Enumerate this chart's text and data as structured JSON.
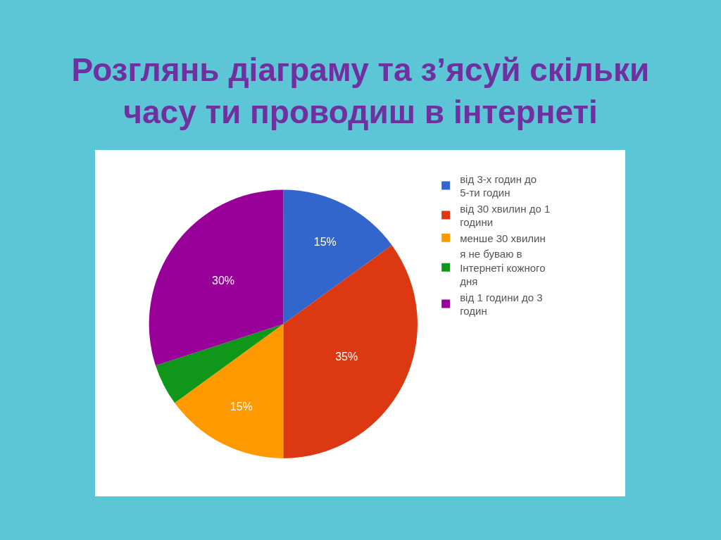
{
  "chart_data": {
    "type": "pie",
    "title": "Розглянь діаграму та з’ясуй скільки\nчасу ти проводиш в інтернеті",
    "categories": [
      "від 3-х годин до 5-ти годин",
      "від 30 хвилин до 1 години",
      "менше 30 хвилин",
      "я не буваю в Інтернеті кожного дня",
      "від 1 години до 3 годин"
    ],
    "values": [
      15,
      35,
      15,
      5,
      30
    ],
    "colors": [
      "#3366cc",
      "#dc3912",
      "#ff9900",
      "#109618",
      "#990099"
    ],
    "value_labels": [
      "15%",
      "35%",
      "15%",
      null,
      "30%"
    ],
    "legend": "right"
  }
}
